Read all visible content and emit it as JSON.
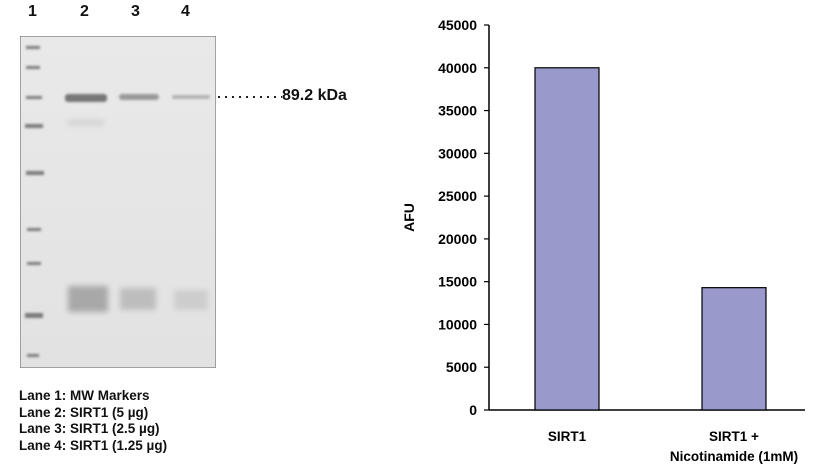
{
  "gel": {
    "lane_numbers": [
      "1",
      "2",
      "3",
      "4"
    ],
    "mw_label": "89.2 kDa",
    "legend": [
      "Lane 1: MW Markers",
      "Lane 2: SIRT1 (5 µg)",
      "Lane 3: SIRT1 (2.5 µg)",
      "Lane 4: SIRT1 (1.25 µg)"
    ]
  },
  "chart_data": {
    "type": "bar",
    "categories": [
      "SIRT1",
      "SIRT1 +\nNicotinamide (1mM)"
    ],
    "values": [
      40000,
      14300
    ],
    "ylabel": "AFU",
    "xlabel": "",
    "ylim": [
      0,
      45000
    ],
    "yticks": [
      0,
      5000,
      10000,
      15000,
      20000,
      25000,
      30000,
      35000,
      40000,
      45000
    ],
    "grid": false,
    "bar_color": "#9999cc"
  }
}
